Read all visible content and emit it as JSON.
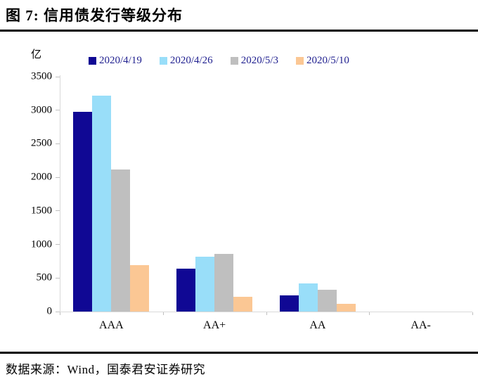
{
  "header": {
    "title": "图 7: 信用债发行等级分布"
  },
  "footer": {
    "source": "数据来源：Wind，国泰君安证券研究"
  },
  "colors": {
    "axis_line": "#D9D9D9",
    "tick": "#BFBFBF",
    "legend_text": "#1F1F8F",
    "title_text": "#000000",
    "rule": "#000000"
  },
  "chart_data": {
    "type": "bar",
    "title": "图 7: 信用债发行等级分布",
    "unit_label": "亿",
    "xlabel": "",
    "ylabel": "亿",
    "categories": [
      "AAA",
      "AA+",
      "AA",
      "AA-"
    ],
    "series": [
      {
        "name": "2020/4/19",
        "color": "#100894",
        "values": [
          2980,
          640,
          240,
          0
        ]
      },
      {
        "name": "2020/4/26",
        "color": "#99DEF9",
        "values": [
          3220,
          820,
          420,
          0
        ]
      },
      {
        "name": "2020/5/3",
        "color": "#BFBFBF",
        "values": [
          2120,
          860,
          330,
          0
        ]
      },
      {
        "name": "2020/5/10",
        "color": "#FBC794",
        "values": [
          690,
          220,
          120,
          0
        ]
      }
    ],
    "ylim": [
      0,
      3500
    ],
    "yticks": [
      3500,
      3000,
      2500,
      2000,
      1500,
      1000,
      500,
      0
    ],
    "grid": false,
    "legend_position": "top"
  }
}
